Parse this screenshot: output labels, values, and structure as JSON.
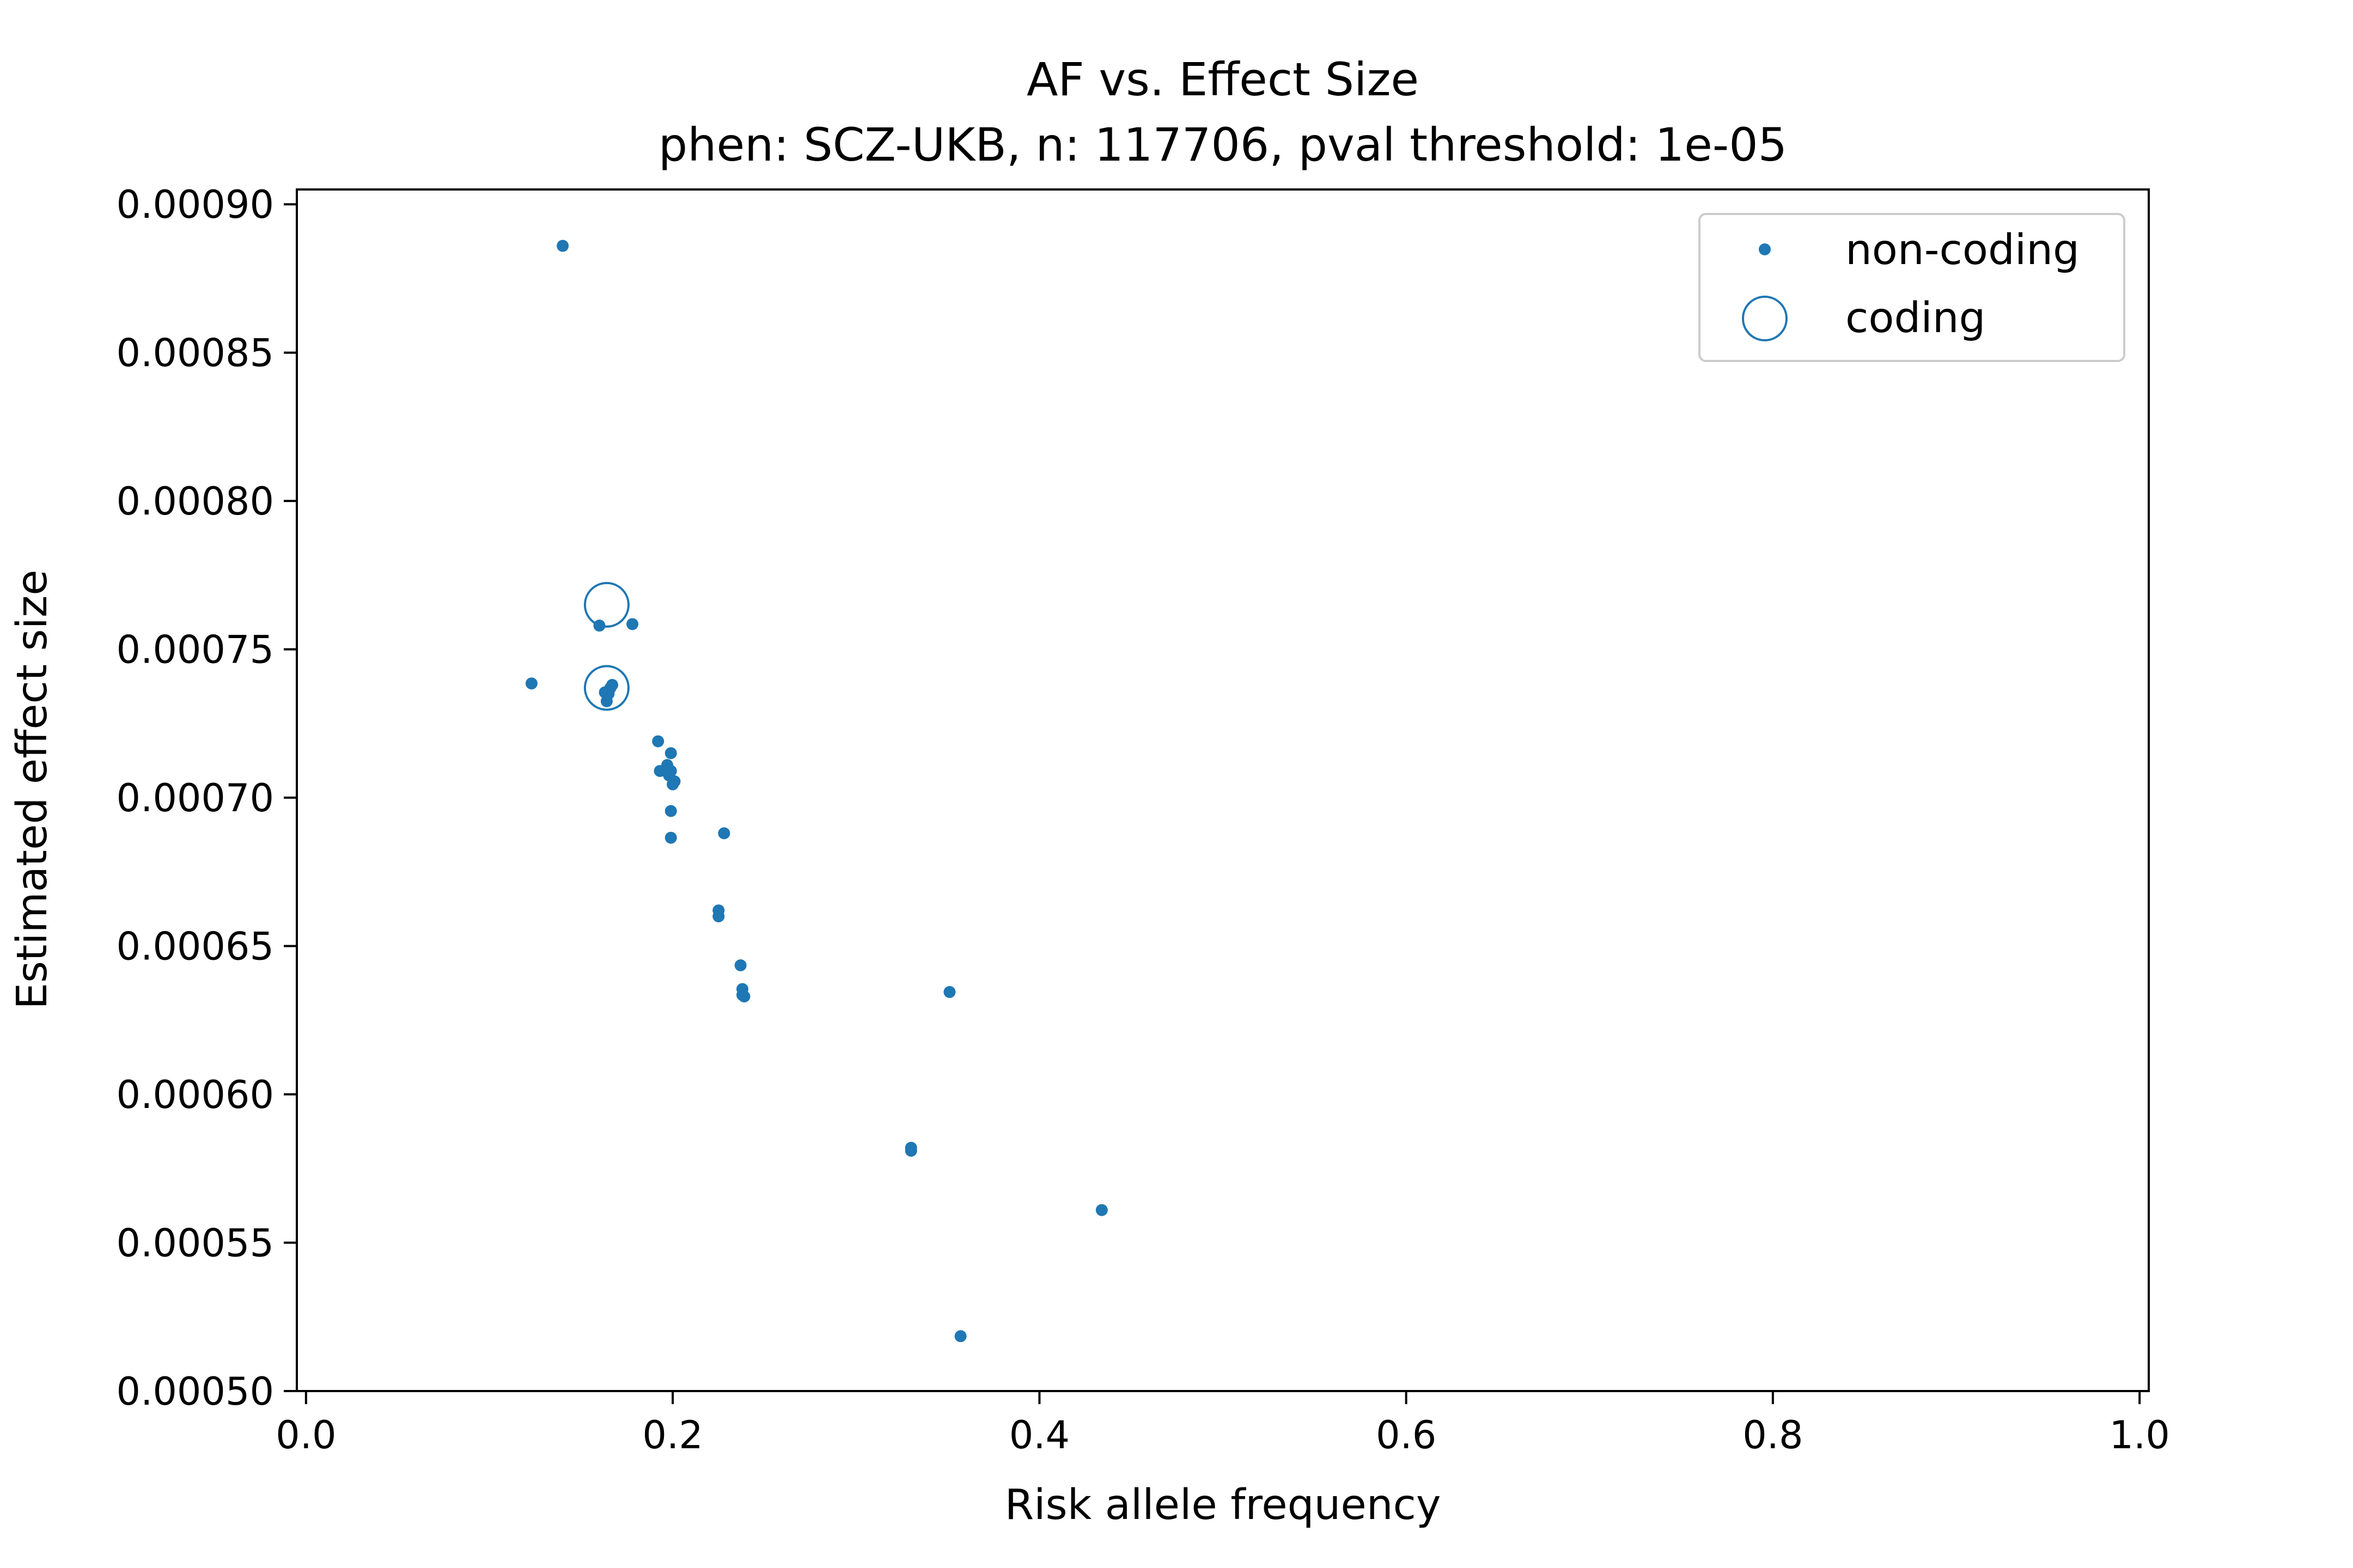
{
  "chart_data": {
    "type": "scatter",
    "title": "AF vs. Effect Size",
    "subtitle": "phen: SCZ-UKB, n: 117706, pval threshold: 1e-05",
    "xlabel": "Risk allele frequency",
    "ylabel": "Estimated effect size",
    "xlim": [
      -0.005,
      1.005
    ],
    "ylim": [
      0.0005,
      0.000905
    ],
    "x_ticks": [
      0.0,
      0.2,
      0.4,
      0.6,
      0.8,
      1.0
    ],
    "x_tick_labels": [
      "0.0",
      "0.2",
      "0.4",
      "0.6",
      "0.8",
      "1.0"
    ],
    "y_ticks": [
      0.0005,
      0.00055,
      0.0006,
      0.00065,
      0.0007,
      0.00075,
      0.0008,
      0.00085,
      0.0009
    ],
    "y_tick_labels": [
      "0.00050",
      "0.00055",
      "0.00060",
      "0.00065",
      "0.00070",
      "0.00075",
      "0.00080",
      "0.00085",
      "0.00090"
    ],
    "grid": false,
    "legend_position": "top-right",
    "color": "#1f77b4",
    "series": [
      {
        "name": "non-coding",
        "marker": "dot",
        "x": [
          0.14,
          0.123,
          0.16,
          0.178,
          0.163,
          0.164,
          0.165,
          0.166,
          0.167,
          0.192,
          0.193,
          0.196,
          0.197,
          0.198,
          0.199,
          0.2,
          0.201,
          0.199,
          0.199,
          0.199,
          0.228,
          0.225,
          0.225,
          0.237,
          0.238,
          0.238,
          0.239,
          0.351,
          0.33,
          0.33,
          0.434,
          0.357
        ],
        "y": [
          0.000886,
          0.0007385,
          0.000758,
          0.0007585,
          0.0007355,
          0.0007325,
          0.000735,
          0.000737,
          0.000738,
          0.000719,
          0.000709,
          0.000709,
          0.000711,
          0.0007075,
          0.000715,
          0.0007045,
          0.0007055,
          0.000709,
          0.0006955,
          0.0006865,
          0.000688,
          0.000662,
          0.00066,
          0.0006435,
          0.0006355,
          0.0006335,
          0.000633,
          0.0006345,
          0.000582,
          0.000581,
          0.000561,
          0.0005185
        ]
      },
      {
        "name": "coding",
        "marker": "circle",
        "x": [
          0.164,
          0.164
        ],
        "y": [
          0.000765,
          0.000737
        ]
      }
    ]
  }
}
